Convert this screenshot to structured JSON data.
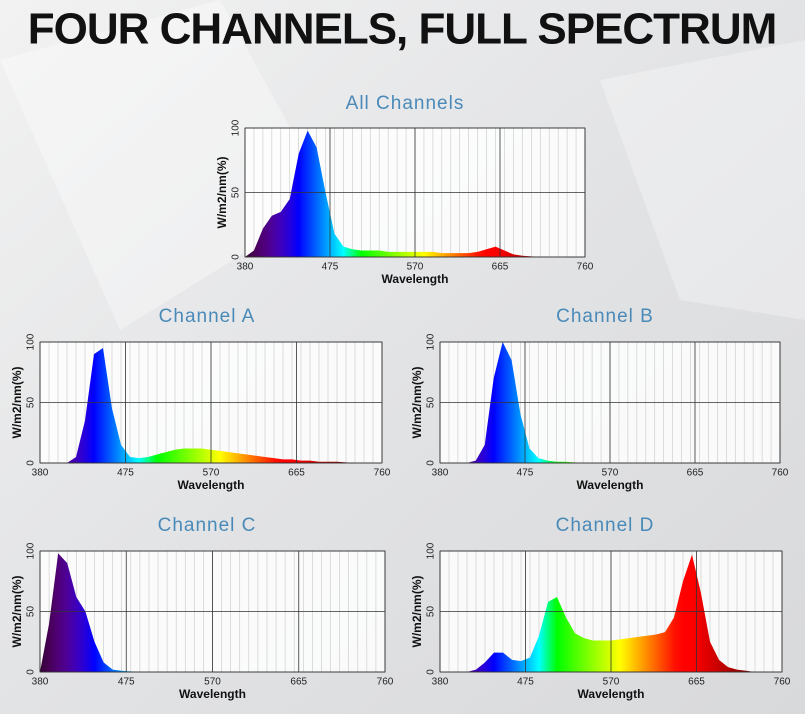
{
  "title": "FOUR CHANNELS, FULL SPECTRUM",
  "chart_data": [
    {
      "type": "area",
      "title": "All Channels",
      "xlabel": "Wavelength",
      "ylabel": "W/m2/nm(%)",
      "xlim": [
        380,
        760
      ],
      "xticks": [
        380,
        475,
        570,
        665,
        760
      ],
      "ylim": [
        0,
        100
      ],
      "yticks": [
        0,
        50,
        100
      ],
      "grid": true,
      "x": [
        380,
        390,
        400,
        410,
        420,
        430,
        440,
        450,
        460,
        470,
        480,
        490,
        500,
        510,
        520,
        530,
        540,
        550,
        560,
        570,
        580,
        590,
        600,
        610,
        620,
        630,
        640,
        650,
        660,
        670,
        680,
        690,
        700,
        710,
        720,
        730,
        740,
        750,
        760
      ],
      "values": [
        0,
        5,
        22,
        32,
        35,
        45,
        80,
        98,
        85,
        50,
        18,
        8,
        6,
        5,
        5,
        5,
        4,
        4,
        4,
        4,
        4,
        4,
        3,
        3,
        3,
        3,
        4,
        6,
        8,
        5,
        2,
        1,
        0.5,
        0,
        0,
        0,
        0,
        0,
        0
      ]
    },
    {
      "type": "area",
      "title": "Channel  A",
      "xlabel": "Wavelength",
      "ylabel": "W/m2/nm(%)",
      "xlim": [
        380,
        760
      ],
      "xticks": [
        380,
        475,
        570,
        665,
        760
      ],
      "ylim": [
        0,
        100
      ],
      "yticks": [
        0,
        50,
        100
      ],
      "grid": true,
      "x": [
        380,
        390,
        400,
        410,
        420,
        430,
        440,
        450,
        460,
        470,
        480,
        490,
        500,
        510,
        520,
        530,
        540,
        550,
        560,
        570,
        580,
        590,
        600,
        610,
        620,
        630,
        640,
        650,
        660,
        670,
        680,
        690,
        700,
        710,
        720,
        730,
        740,
        750,
        760
      ],
      "values": [
        0,
        0,
        0,
        0,
        5,
        35,
        90,
        95,
        45,
        15,
        5,
        4,
        5,
        7,
        9,
        11,
        12,
        12,
        12,
        11,
        10,
        9,
        8,
        7,
        6,
        5,
        4,
        3,
        3,
        2,
        2,
        1,
        1,
        1,
        0.5,
        0,
        0,
        0,
        0
      ]
    },
    {
      "type": "area",
      "title": "Channel  B",
      "xlabel": "Wavelength",
      "ylabel": "W/m2/nm(%)",
      "xlim": [
        380,
        760
      ],
      "xticks": [
        380,
        475,
        570,
        665,
        760
      ],
      "ylim": [
        0,
        100
      ],
      "yticks": [
        0,
        50,
        100
      ],
      "grid": true,
      "x": [
        380,
        390,
        400,
        410,
        420,
        430,
        440,
        450,
        460,
        470,
        480,
        490,
        500,
        510,
        520,
        530,
        540,
        550,
        560,
        570,
        580,
        590,
        600,
        610,
        620,
        630,
        640,
        650,
        660,
        670,
        680,
        690,
        700,
        710,
        720,
        730,
        740,
        750,
        760
      ],
      "values": [
        0,
        0,
        0,
        0,
        2,
        15,
        70,
        100,
        85,
        40,
        12,
        4,
        2,
        1,
        1,
        0.5,
        0,
        0,
        0,
        0,
        0,
        0,
        0,
        0,
        0,
        0,
        0,
        0,
        0,
        0,
        0,
        0,
        0,
        0,
        0,
        0,
        0,
        0,
        0
      ]
    },
    {
      "type": "area",
      "title": "Channel  C",
      "xlabel": "Wavelength",
      "ylabel": "W/m2/nm(%)",
      "xlim": [
        380,
        760
      ],
      "xticks": [
        380,
        475,
        570,
        665,
        760
      ],
      "ylim": [
        0,
        100
      ],
      "yticks": [
        0,
        50,
        100
      ],
      "grid": true,
      "x": [
        380,
        390,
        400,
        410,
        420,
        430,
        440,
        450,
        460,
        470,
        480,
        490,
        500,
        510,
        520,
        530,
        540,
        550,
        560,
        570,
        580,
        590,
        600,
        610,
        620,
        630,
        640,
        650,
        660,
        670,
        680,
        690,
        700,
        710,
        720,
        730,
        740,
        750,
        760
      ],
      "values": [
        0,
        40,
        98,
        90,
        62,
        50,
        25,
        8,
        2,
        1,
        0.5,
        0,
        0,
        0,
        0,
        0,
        0,
        0,
        0,
        0,
        0,
        0,
        0,
        0,
        0,
        0,
        0,
        0,
        0,
        0,
        0,
        0,
        0,
        0,
        0,
        0,
        0,
        0,
        0
      ]
    },
    {
      "type": "area",
      "title": "Channel  D",
      "xlabel": "Wavelength",
      "ylabel": "W/m2/nm(%)",
      "xlim": [
        380,
        760
      ],
      "xticks": [
        380,
        475,
        570,
        665,
        760
      ],
      "ylim": [
        0,
        100
      ],
      "yticks": [
        0,
        50,
        100
      ],
      "grid": true,
      "x": [
        380,
        390,
        400,
        410,
        420,
        430,
        440,
        450,
        460,
        470,
        480,
        490,
        500,
        510,
        520,
        530,
        540,
        550,
        560,
        570,
        580,
        590,
        600,
        610,
        620,
        630,
        640,
        650,
        660,
        670,
        680,
        690,
        700,
        710,
        720,
        730,
        740,
        750,
        760
      ],
      "values": [
        0,
        0,
        0,
        0,
        2,
        8,
        16,
        16,
        10,
        9,
        12,
        30,
        58,
        62,
        45,
        32,
        28,
        26,
        26,
        26,
        27,
        28,
        29,
        30,
        31,
        33,
        45,
        75,
        97,
        65,
        25,
        10,
        4,
        2,
        1,
        0,
        0,
        0,
        0
      ]
    }
  ]
}
